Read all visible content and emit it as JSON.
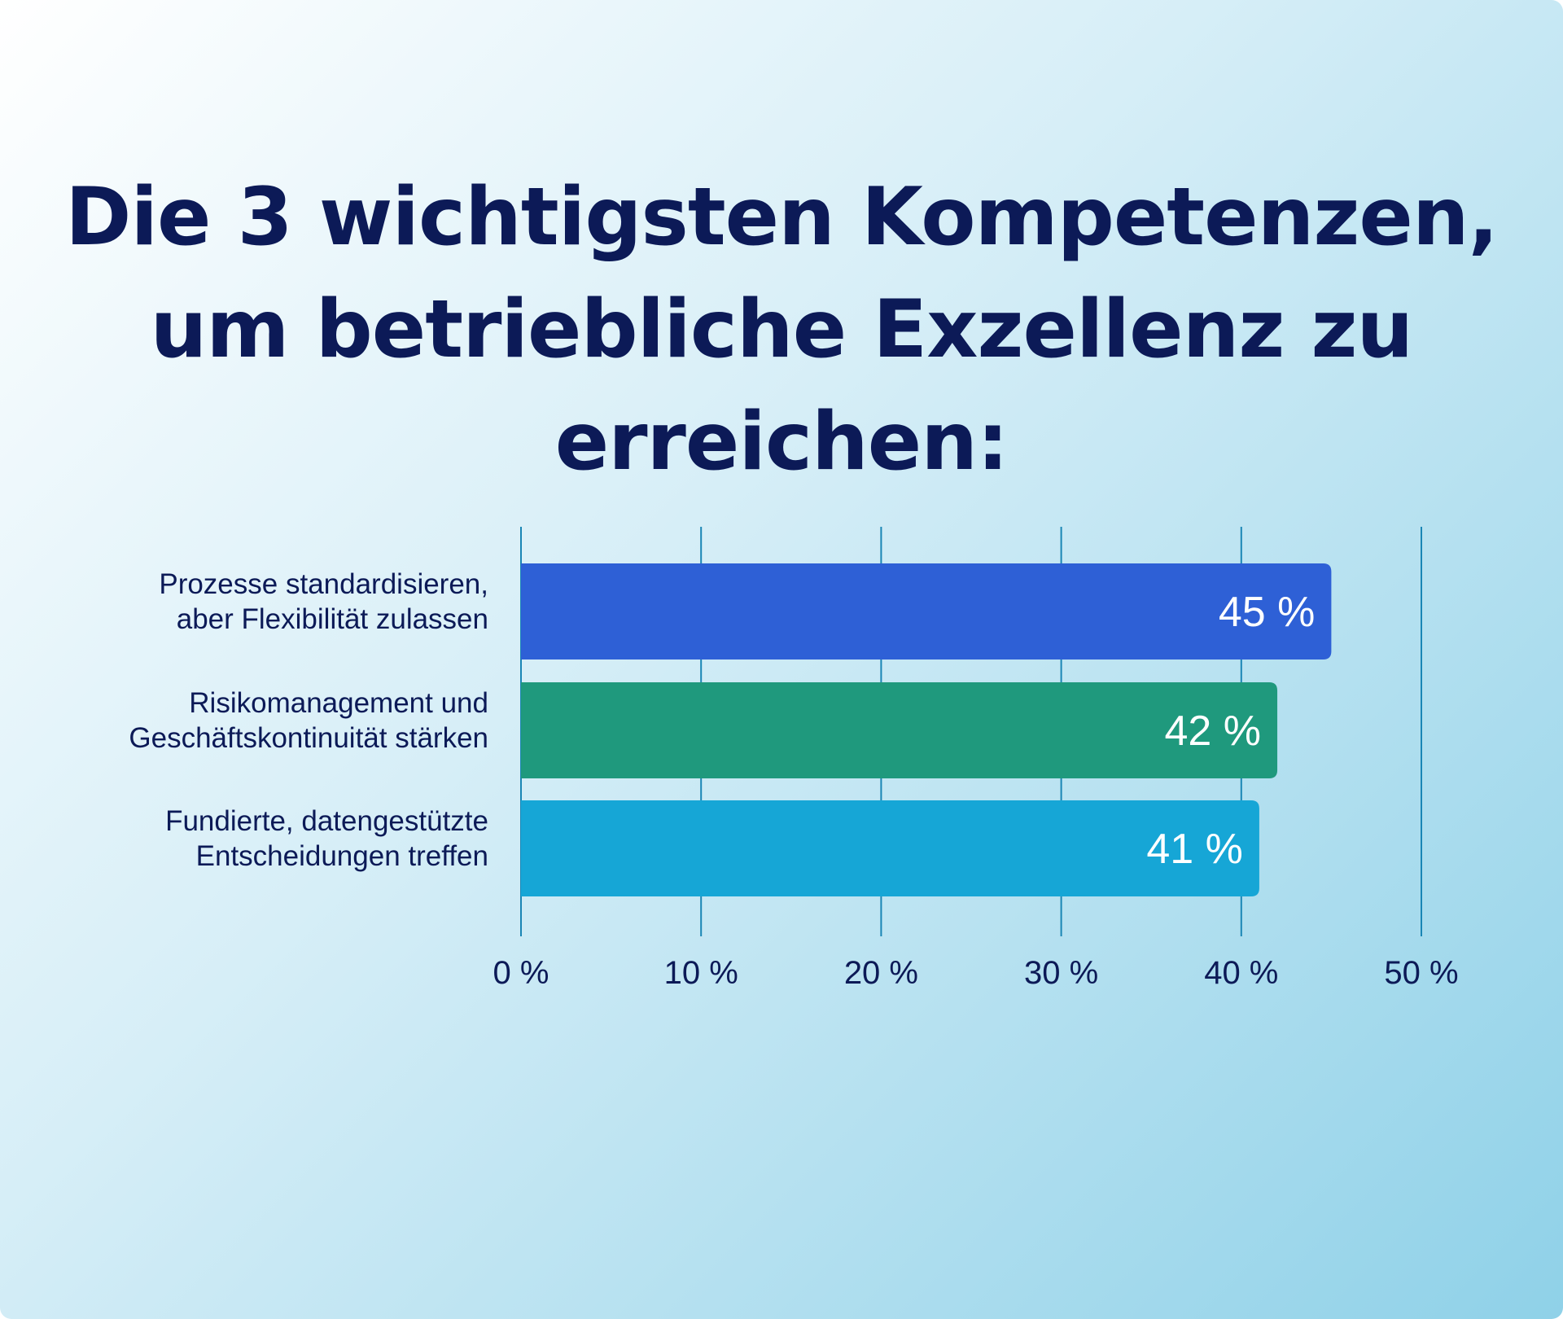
{
  "chart_data": {
    "type": "bar",
    "orientation": "horizontal",
    "title": "Die 3 wichtigsten Kompetenzen, um betriebliche Exzellenz zu erreichen:",
    "title_lines": [
      "Die 3 wichtigsten Kompetenzen,",
      "um betriebliche Exzellenz zu",
      "erreichen:"
    ],
    "categories": [
      [
        "Prozesse standardisieren,",
        "aber Flexibilität zulassen"
      ],
      [
        "Risikomanagement und",
        "Geschäftskontinuität stärken"
      ],
      [
        "Fundierte, datengestützte",
        "Entscheidungen treffen"
      ]
    ],
    "values": [
      45,
      42,
      41
    ],
    "value_labels": [
      "45 %",
      "42 %",
      "41 %"
    ],
    "xlim": [
      0,
      50
    ],
    "x_ticks": [
      0,
      10,
      20,
      30,
      40,
      50
    ],
    "x_tick_labels": [
      "0 %",
      "10 %",
      "20 %",
      "30 %",
      "40 %",
      "50 %"
    ],
    "grid": "vertical",
    "legend": "none",
    "colors": {
      "bars": [
        "#2e60d6",
        "#1f997d",
        "#16a6d6"
      ],
      "text": "#0c1a57",
      "grid": "#1a86b5",
      "value_label": "#ffffff"
    }
  }
}
